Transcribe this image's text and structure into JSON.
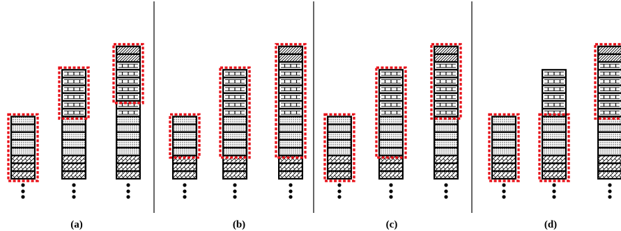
{
  "panels": [
    {
      "label": "(a)",
      "columns": [
        {
          "cells": [
            "dot",
            "dot",
            "dot",
            "dot",
            "dot",
            "hatch",
            "hatch",
            "hatch"
          ],
          "boxes": [
            {
              "from": 0,
              "to": 7
            }
          ]
        },
        {
          "cells": [
            "hbar",
            "hbar",
            "hbar",
            "hbar",
            "hbar",
            "hbar",
            "dot",
            "dot",
            "dot",
            "dot",
            "dot",
            "hatch",
            "hatch",
            "hatch"
          ],
          "boxes": [
            {
              "from": 0,
              "to": 5
            }
          ]
        },
        {
          "cells": [
            "diag",
            "diag",
            "hbar",
            "hbar",
            "hbar",
            "hbar",
            "hbar",
            "hbar",
            "hbar",
            "dot",
            "dot",
            "dot",
            "dot",
            "dot",
            "hatch",
            "hatch",
            "hatch"
          ],
          "boxes": [
            {
              "from": 0,
              "to": 6
            }
          ]
        }
      ]
    },
    {
      "label": "(b)",
      "columns": [
        {
          "cells": [
            "dot",
            "dot",
            "dot",
            "dot",
            "dot",
            "hatch",
            "hatch",
            "hatch"
          ],
          "boxes": [
            {
              "from": 0,
              "to": 4
            }
          ]
        },
        {
          "cells": [
            "hbar",
            "hbar",
            "hbar",
            "hbar",
            "hbar",
            "hbar",
            "dot",
            "dot",
            "dot",
            "dot",
            "dot",
            "hatch",
            "hatch",
            "hatch"
          ],
          "boxes": [
            {
              "from": 0,
              "to": 10
            }
          ]
        },
        {
          "cells": [
            "diag",
            "diag",
            "hbar",
            "hbar",
            "hbar",
            "hbar",
            "hbar",
            "hbar",
            "hbar",
            "dot",
            "dot",
            "dot",
            "dot",
            "dot",
            "hatch",
            "hatch",
            "hatch"
          ],
          "boxes": [
            {
              "from": 0,
              "to": 13
            }
          ]
        }
      ]
    },
    {
      "label": "(c)",
      "columns": [
        {
          "cells": [
            "dot",
            "dot",
            "dot",
            "dot",
            "dot",
            "hatch",
            "hatch",
            "hatch"
          ],
          "boxes": [
            {
              "from": 0,
              "to": 7
            }
          ]
        },
        {
          "cells": [
            "hbar",
            "hbar",
            "hbar",
            "hbar",
            "hbar",
            "hbar",
            "dot",
            "dot",
            "dot",
            "dot",
            "dot",
            "hatch",
            "hatch",
            "hatch"
          ],
          "boxes": [
            {
              "from": 0,
              "to": 10
            }
          ]
        },
        {
          "cells": [
            "diag",
            "diag",
            "hbar",
            "hbar",
            "hbar",
            "hbar",
            "hbar",
            "hbar",
            "hbar",
            "dot",
            "dot",
            "dot",
            "dot",
            "dot",
            "hatch",
            "hatch",
            "hatch"
          ],
          "boxes": [
            {
              "from": 0,
              "to": 8
            }
          ]
        }
      ]
    },
    {
      "label": "(d)",
      "columns": [
        {
          "cells": [
            "dot",
            "dot",
            "dot",
            "dot",
            "dot",
            "hatch",
            "hatch",
            "hatch"
          ],
          "boxes": [
            {
              "from": 0,
              "to": 7
            }
          ]
        },
        {
          "cells": [
            "hbar",
            "hbar",
            "hbar",
            "hbar",
            "hbar",
            "hbar",
            "dot",
            "dot",
            "dot",
            "dot",
            "dot",
            "hatch",
            "hatch",
            "hatch"
          ],
          "boxes": [
            {
              "from": 6,
              "to": 13
            }
          ]
        },
        {
          "cells": [
            "diag",
            "diag",
            "hbar",
            "hbar",
            "hbar",
            "hbar",
            "hbar",
            "hbar",
            "hbar",
            "dot",
            "dot",
            "dot",
            "dot",
            "dot",
            "hatch",
            "hatch",
            "hatch"
          ],
          "boxes": [
            {
              "from": 0,
              "to": 8
            }
          ]
        }
      ]
    }
  ],
  "colors": {
    "outline": "#000000",
    "highlight": "#e8131b",
    "background": "#ffffff",
    "separator": "#000000"
  }
}
